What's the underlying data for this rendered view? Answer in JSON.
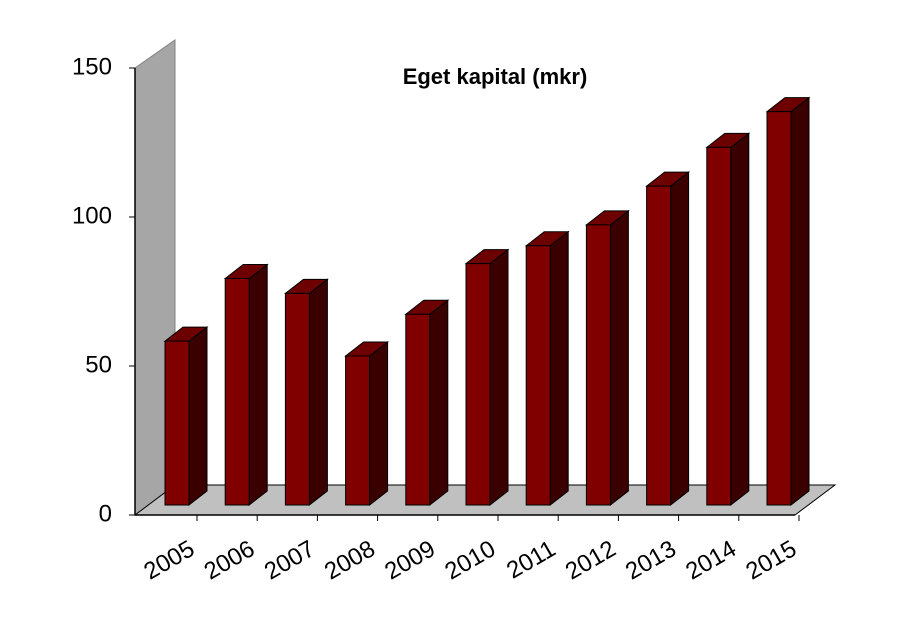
{
  "chart_data": {
    "type": "bar3d",
    "title": "Eget kapital (mkr)",
    "categories": [
      "2005",
      "2006",
      "2007",
      "2008",
      "2009",
      "2010",
      "2011",
      "2012",
      "2013",
      "2014",
      "2015"
    ],
    "values": [
      55,
      76,
      71,
      50,
      64,
      81,
      87,
      94,
      107,
      120,
      132
    ],
    "color": "#800000",
    "ylim": [
      0,
      150
    ],
    "yticks": [
      0,
      50,
      100,
      150
    ],
    "grid": false
  }
}
